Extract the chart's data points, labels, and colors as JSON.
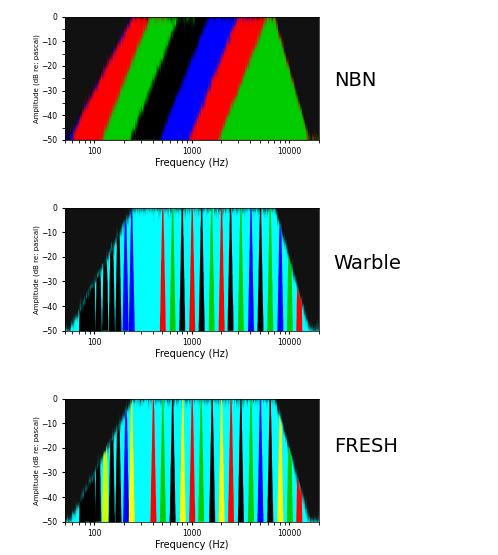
{
  "panels": [
    "NBN",
    "Warble",
    "FRESH"
  ],
  "xlabel": "Frequency (Hz)",
  "ylabel": "Amplitude (dB re: pascal)",
  "ylim": [
    -50,
    0
  ],
  "xmin": 50,
  "xmax": 20000,
  "fig_bg": "#ffffff",
  "nbn_bands": [
    [
      80,
      1.5,
      "#000000"
    ],
    [
      160,
      1.5,
      "#0000ff"
    ],
    [
      315,
      1.5,
      "#ff0000"
    ],
    [
      630,
      1.5,
      "#00cc00"
    ],
    [
      1250,
      1.5,
      "#000000"
    ],
    [
      2500,
      1.5,
      "#0000ff"
    ],
    [
      5000,
      1.5,
      "#ff0000"
    ],
    [
      10000,
      1.5,
      "#00cc00"
    ]
  ],
  "warble_tones": [
    [
      75,
      0.06,
      "#000000"
    ],
    [
      85,
      0.06,
      "#000000"
    ],
    [
      95,
      0.06,
      "#000000"
    ],
    [
      110,
      0.05,
      "#000000"
    ],
    [
      130,
      0.05,
      "#000000"
    ],
    [
      150,
      0.05,
      "#000000"
    ],
    [
      175,
      0.05,
      "#000000"
    ],
    [
      210,
      0.04,
      "#0000ff"
    ],
    [
      240,
      0.04,
      "#0000ff"
    ],
    [
      500,
      0.04,
      "#ff0000"
    ],
    [
      630,
      0.04,
      "#00cc00"
    ],
    [
      800,
      0.04,
      "#000000"
    ],
    [
      1000,
      0.04,
      "#ff0000"
    ],
    [
      1250,
      0.04,
      "#000000"
    ],
    [
      1600,
      0.04,
      "#00cc00"
    ],
    [
      2000,
      0.04,
      "#ff0000"
    ],
    [
      2500,
      0.04,
      "#000000"
    ],
    [
      3150,
      0.04,
      "#00cc00"
    ],
    [
      4000,
      0.04,
      "#0000ff"
    ],
    [
      5000,
      0.04,
      "#000000"
    ],
    [
      6300,
      0.04,
      "#00cc00"
    ],
    [
      8000,
      0.04,
      "#0000ff"
    ],
    [
      10000,
      0.04,
      "#00cc00"
    ],
    [
      12500,
      0.04,
      "#ff0000"
    ]
  ],
  "fresh_tones": [
    [
      75,
      0.06,
      "#000000"
    ],
    [
      85,
      0.06,
      "#000000"
    ],
    [
      95,
      0.06,
      "#000000"
    ],
    [
      110,
      0.05,
      "#000000"
    ],
    [
      130,
      0.05,
      "#ccff00"
    ],
    [
      150,
      0.05,
      "#000000"
    ],
    [
      175,
      0.05,
      "#000000"
    ],
    [
      210,
      0.04,
      "#0000ff"
    ],
    [
      240,
      0.04,
      "#ffff00"
    ],
    [
      400,
      0.04,
      "#ff0000"
    ],
    [
      500,
      0.04,
      "#00cc00"
    ],
    [
      630,
      0.04,
      "#000000"
    ],
    [
      800,
      0.04,
      "#ffff00"
    ],
    [
      1000,
      0.04,
      "#ff0000"
    ],
    [
      1250,
      0.04,
      "#00cc00"
    ],
    [
      1600,
      0.04,
      "#000000"
    ],
    [
      2000,
      0.04,
      "#ffff00"
    ],
    [
      2500,
      0.04,
      "#ff0000"
    ],
    [
      3150,
      0.04,
      "#000000"
    ],
    [
      4000,
      0.04,
      "#00cc00"
    ],
    [
      5000,
      0.04,
      "#0000ff"
    ],
    [
      6300,
      0.04,
      "#000000"
    ],
    [
      8000,
      0.04,
      "#ffff00"
    ],
    [
      10000,
      0.04,
      "#00cc00"
    ],
    [
      12500,
      0.04,
      "#ff0000"
    ]
  ]
}
